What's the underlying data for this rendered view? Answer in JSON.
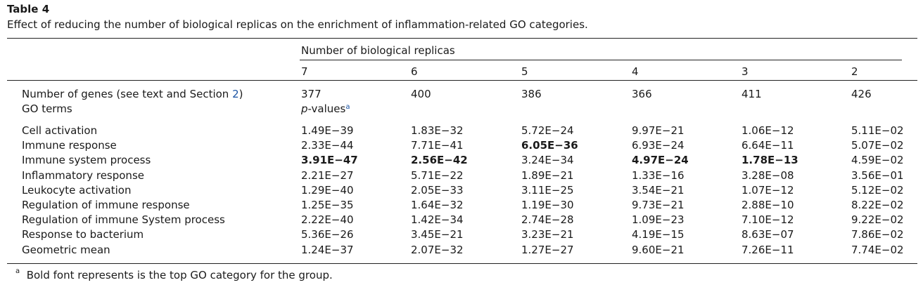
{
  "caption": {
    "title": "Table 4",
    "text": "Effect of reducing the number of biological replicas on the enrichment of inflammation-related GO categories."
  },
  "header": {
    "group_label": "Number of biological replicas",
    "columns": [
      "7",
      "6",
      "5",
      "4",
      "3",
      "2"
    ]
  },
  "genes_row": {
    "label_prefix": "Number of genes (see text and Section ",
    "label_link": "2",
    "label_suffix": ")",
    "values": [
      "377",
      "400",
      "386",
      "366",
      "411",
      "426"
    ]
  },
  "go_terms_row": {
    "label": "GO terms",
    "pvalues_italic": "p",
    "pvalues_rest": "-values",
    "footnote_mark": "a"
  },
  "rows": [
    {
      "label": "Cell activation",
      "values": [
        "1.49E−39",
        "1.83E−32",
        "5.72E−24",
        "9.97E−21",
        "1.06E−12",
        "5.11E−02"
      ],
      "bold": [
        false,
        false,
        false,
        false,
        false,
        false
      ]
    },
    {
      "label": "Immune response",
      "values": [
        "2.33E−44",
        "7.71E−41",
        "6.05E−36",
        "6.93E−24",
        "6.64E−11",
        "5.07E−02"
      ],
      "bold": [
        false,
        false,
        true,
        false,
        false,
        false
      ]
    },
    {
      "label": "Immune system process",
      "values": [
        "3.91E−47",
        "2.56E−42",
        "3.24E−34",
        "4.97E−24",
        "1.78E−13",
        "4.59E−02"
      ],
      "bold": [
        true,
        true,
        false,
        true,
        true,
        false
      ]
    },
    {
      "label": "Inflammatory response",
      "values": [
        "2.21E−27",
        "5.71E−22",
        "1.89E−21",
        "1.33E−16",
        "3.28E−08",
        "3.56E−01"
      ],
      "bold": [
        false,
        false,
        false,
        false,
        false,
        false
      ]
    },
    {
      "label": "Leukocyte activation",
      "values": [
        "1.29E−40",
        "2.05E−33",
        "3.11E−25",
        "3.54E−21",
        "1.07E−12",
        "5.12E−02"
      ],
      "bold": [
        false,
        false,
        false,
        false,
        false,
        false
      ]
    },
    {
      "label": "Regulation of immune response",
      "values": [
        "1.25E−35",
        "1.64E−32",
        "1.19E−30",
        "9.73E−21",
        "2.88E−10",
        "8.22E−02"
      ],
      "bold": [
        false,
        false,
        false,
        false,
        false,
        false
      ]
    },
    {
      "label": "Regulation of immune System process",
      "values": [
        "2.22E−40",
        "1.42E−34",
        "2.74E−28",
        "1.09E−23",
        "7.10E−12",
        "9.22E−02"
      ],
      "bold": [
        false,
        false,
        false,
        false,
        false,
        false
      ]
    },
    {
      "label": "Response to bacterium",
      "values": [
        "5.36E−26",
        "3.45E−21",
        "3.23E−21",
        "4.19E−15",
        "8.63E−07",
        "7.86E−02"
      ],
      "bold": [
        false,
        false,
        false,
        false,
        false,
        false
      ]
    },
    {
      "label": "Geometric mean",
      "values": [
        "1.24E−37",
        "2.07E−32",
        "1.27E−27",
        "9.60E−21",
        "7.26E−11",
        "7.74E−02"
      ],
      "bold": [
        false,
        false,
        false,
        false,
        false,
        false
      ]
    }
  ],
  "footnote": {
    "mark": "a",
    "text": "Bold font represents is the top GO category for the group."
  }
}
